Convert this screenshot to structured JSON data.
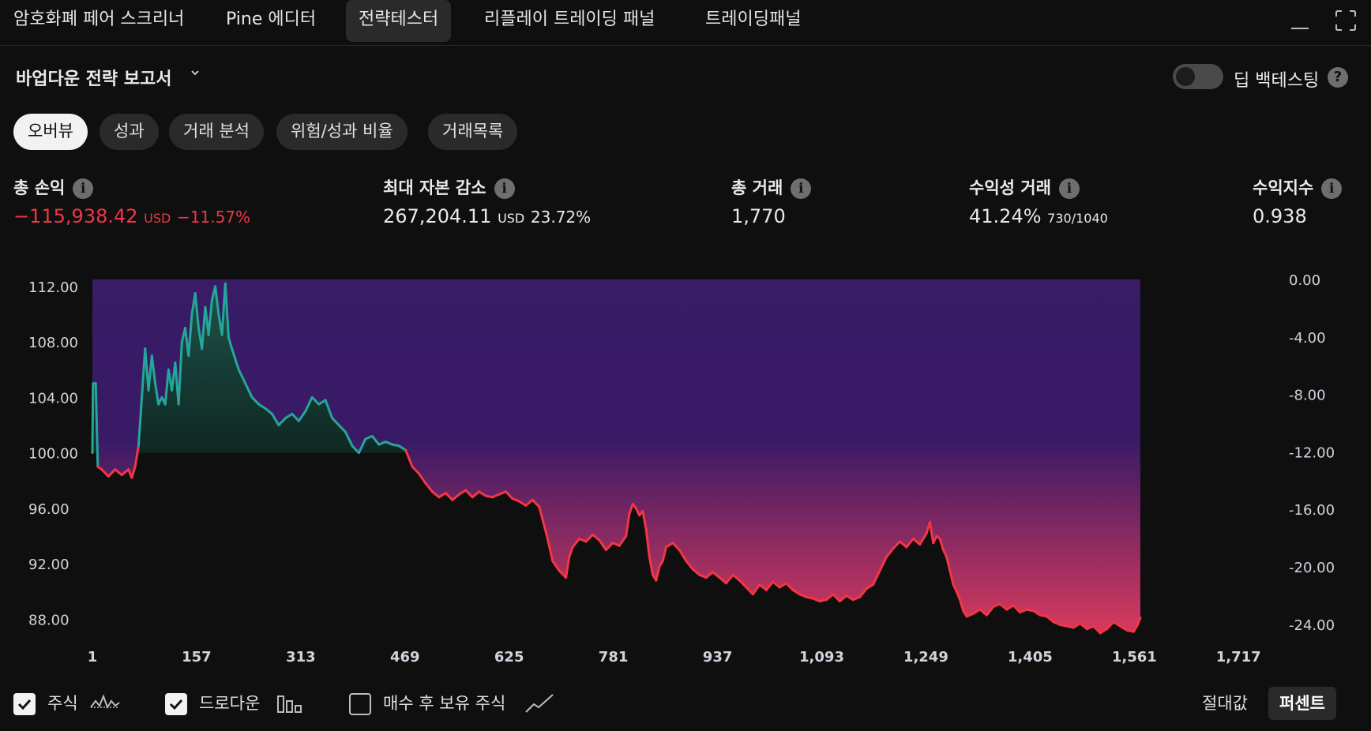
{
  "topbar": {
    "tabs": [
      "암호화폐 페어 스크리너",
      "Pine 에디터",
      "전략테스터",
      "리플레이 트레이딩 패널",
      "트레이딩패널"
    ],
    "active_tab": 2
  },
  "report": {
    "title": "바업다운 전략 보고서",
    "deep_backtest_label": "딥 백테스팅",
    "deep_backtest_on": false,
    "help_glyph": "?"
  },
  "subtabs": [
    "오버뷰",
    "성과",
    "거래 분석",
    "위험/성과 비율",
    "거래목록"
  ],
  "active_subtab": 0,
  "stats": [
    {
      "label": "총 손익",
      "value": "−115,938.42",
      "unit": "USD",
      "extra": "−11.57%",
      "negative": true
    },
    {
      "label": "최대 자본 감소",
      "value": "267,204.11",
      "unit": "USD",
      "extra": "23.72%",
      "negative": false
    },
    {
      "label": "총 거래",
      "value": "1,770",
      "unit": "",
      "extra": "",
      "negative": false
    },
    {
      "label": "수익성 거래",
      "value": "41.24%",
      "unit": "",
      "extra": "730/1040",
      "negative": false
    },
    {
      "label": "수익지수",
      "value": "0.938",
      "unit": "",
      "extra": "",
      "negative": false
    }
  ],
  "info_glyph": "i",
  "chart_data": {
    "type": "area",
    "x_ticks": [
      "1",
      "157",
      "313",
      "469",
      "625",
      "781",
      "937",
      "1,093",
      "1,249",
      "1,405",
      "1,561",
      "1,717"
    ],
    "y_left_ticks": [
      "112.00",
      "108.00",
      "104.00",
      "100.00",
      "96.00",
      "92.00",
      "88.00"
    ],
    "y_right_ticks": [
      "0.00",
      "-4.00",
      "-8.00",
      "-12.00",
      "-16.00",
      "-20.00",
      "-24.00"
    ],
    "y_left_range": [
      87,
      112.5
    ],
    "y_right_range": [
      -24,
      0
    ],
    "x_range": [
      1,
      1770
    ],
    "baseline": 100,
    "series": [
      {
        "name": "주식",
        "points": [
          [
            1,
            100
          ],
          [
            2,
            105
          ],
          [
            6,
            105
          ],
          [
            9,
            99
          ],
          [
            15,
            98.8
          ],
          [
            25,
            98.3
          ],
          [
            35,
            98.8
          ],
          [
            45,
            98.4
          ],
          [
            55,
            98.8
          ],
          [
            60,
            98.2
          ],
          [
            65,
            99
          ],
          [
            70,
            100.5
          ],
          [
            75,
            104
          ],
          [
            80,
            107.5
          ],
          [
            85,
            104.5
          ],
          [
            90,
            107
          ],
          [
            95,
            105
          ],
          [
            100,
            103.5
          ],
          [
            105,
            104
          ],
          [
            110,
            103.5
          ],
          [
            115,
            106
          ],
          [
            120,
            104.5
          ],
          [
            125,
            106.5
          ],
          [
            130,
            103.5
          ],
          [
            135,
            108
          ],
          [
            140,
            109
          ],
          [
            145,
            107
          ],
          [
            150,
            110
          ],
          [
            155,
            111.5
          ],
          [
            160,
            109
          ],
          [
            165,
            107.5
          ],
          [
            170,
            110.5
          ],
          [
            175,
            108.5
          ],
          [
            180,
            111
          ],
          [
            185,
            112
          ],
          [
            190,
            110
          ],
          [
            195,
            108.5
          ],
          [
            200,
            112.2
          ],
          [
            205,
            108.3
          ],
          [
            210,
            107.5
          ],
          [
            220,
            106
          ],
          [
            230,
            105
          ],
          [
            240,
            104
          ],
          [
            250,
            103.5
          ],
          [
            260,
            103.2
          ],
          [
            270,
            102.8
          ],
          [
            280,
            102
          ],
          [
            290,
            102.5
          ],
          [
            300,
            102.8
          ],
          [
            310,
            102.3
          ],
          [
            320,
            103
          ],
          [
            330,
            104
          ],
          [
            340,
            103.5
          ],
          [
            350,
            103.8
          ],
          [
            360,
            102.5
          ],
          [
            370,
            102
          ],
          [
            380,
            101.5
          ],
          [
            390,
            100.5
          ],
          [
            400,
            100
          ],
          [
            410,
            101
          ],
          [
            420,
            101.2
          ],
          [
            430,
            100.6
          ],
          [
            440,
            100.8
          ],
          [
            450,
            100.6
          ],
          [
            460,
            100.5
          ],
          [
            470,
            100.2
          ],
          [
            480,
            99
          ],
          [
            490,
            98.5
          ],
          [
            500,
            97.8
          ],
          [
            510,
            97.2
          ],
          [
            520,
            96.8
          ],
          [
            530,
            97.1
          ],
          [
            540,
            96.6
          ],
          [
            550,
            97
          ],
          [
            560,
            97.3
          ],
          [
            570,
            96.8
          ],
          [
            580,
            97.2
          ],
          [
            590,
            96.9
          ],
          [
            600,
            96.8
          ],
          [
            610,
            97
          ],
          [
            620,
            97.2
          ],
          [
            630,
            96.7
          ],
          [
            640,
            96.5
          ],
          [
            650,
            96.2
          ],
          [
            660,
            96.6
          ],
          [
            670,
            96.1
          ],
          [
            675,
            95.2
          ],
          [
            680,
            94.3
          ],
          [
            685,
            93.3
          ],
          [
            690,
            92.2
          ],
          [
            700,
            91.5
          ],
          [
            710,
            91
          ],
          [
            715,
            92.5
          ],
          [
            720,
            93.2
          ],
          [
            730,
            93.8
          ],
          [
            740,
            93.6
          ],
          [
            750,
            94.1
          ],
          [
            760,
            93.7
          ],
          [
            770,
            93
          ],
          [
            780,
            93.5
          ],
          [
            790,
            93.3
          ],
          [
            800,
            94
          ],
          [
            805,
            95.6
          ],
          [
            810,
            96.3
          ],
          [
            815,
            96
          ],
          [
            820,
            95.5
          ],
          [
            825,
            95.8
          ],
          [
            830,
            94.5
          ],
          [
            835,
            92.5
          ],
          [
            840,
            91.2
          ],
          [
            845,
            90.8
          ],
          [
            850,
            91.8
          ],
          [
            855,
            92.2
          ],
          [
            860,
            93.2
          ],
          [
            870,
            93.5
          ],
          [
            880,
            93
          ],
          [
            890,
            92.2
          ],
          [
            900,
            91.6
          ],
          [
            910,
            91.2
          ],
          [
            920,
            91
          ],
          [
            930,
            91.4
          ],
          [
            940,
            91
          ],
          [
            950,
            90.6
          ],
          [
            960,
            91.2
          ],
          [
            970,
            90.8
          ],
          [
            980,
            90.3
          ],
          [
            990,
            89.8
          ],
          [
            1000,
            90.5
          ],
          [
            1010,
            90.1
          ],
          [
            1020,
            90.7
          ],
          [
            1030,
            90.3
          ],
          [
            1040,
            90.6
          ],
          [
            1050,
            90.1
          ],
          [
            1060,
            89.8
          ],
          [
            1070,
            89.6
          ],
          [
            1080,
            89.5
          ],
          [
            1090,
            89.3
          ],
          [
            1100,
            89.4
          ],
          [
            1110,
            89.8
          ],
          [
            1120,
            89.3
          ],
          [
            1130,
            89.7
          ],
          [
            1140,
            89.4
          ],
          [
            1150,
            89.6
          ],
          [
            1160,
            90.2
          ],
          [
            1170,
            90.5
          ],
          [
            1180,
            91.5
          ],
          [
            1190,
            92.5
          ],
          [
            1200,
            93.1
          ],
          [
            1210,
            93.6
          ],
          [
            1220,
            93.2
          ],
          [
            1230,
            93.8
          ],
          [
            1240,
            93.4
          ],
          [
            1250,
            94.2
          ],
          [
            1255,
            95
          ],
          [
            1260,
            93.5
          ],
          [
            1265,
            94
          ],
          [
            1270,
            93.8
          ],
          [
            1275,
            93
          ],
          [
            1280,
            92.5
          ],
          [
            1285,
            91.5
          ],
          [
            1290,
            90.5
          ],
          [
            1295,
            90
          ],
          [
            1300,
            89.4
          ],
          [
            1305,
            88.6
          ],
          [
            1310,
            88.2
          ],
          [
            1320,
            88.4
          ],
          [
            1330,
            88.7
          ],
          [
            1340,
            88.3
          ],
          [
            1350,
            88.9
          ],
          [
            1360,
            89.1
          ],
          [
            1370,
            88.7
          ],
          [
            1380,
            89
          ],
          [
            1390,
            88.5
          ],
          [
            1400,
            88.7
          ],
          [
            1410,
            88.6
          ],
          [
            1420,
            88.3
          ],
          [
            1430,
            88.2
          ],
          [
            1440,
            87.8
          ],
          [
            1450,
            87.6
          ],
          [
            1460,
            87.5
          ],
          [
            1470,
            87.4
          ],
          [
            1480,
            87.7
          ],
          [
            1490,
            87.3
          ],
          [
            1500,
            87.5
          ],
          [
            1510,
            87
          ],
          [
            1520,
            87.3
          ],
          [
            1530,
            87.8
          ],
          [
            1540,
            87.5
          ],
          [
            1550,
            87.2
          ],
          [
            1560,
            87.1
          ],
          [
            1566,
            87.6
          ],
          [
            1570,
            88.1
          ]
        ]
      }
    ]
  },
  "footer": {
    "legend": [
      {
        "label": "주식",
        "checked": true,
        "icon": "equity-line-icon"
      },
      {
        "label": "드로다운",
        "checked": true,
        "icon": "drawdown-bars-icon"
      },
      {
        "label": "매수 후 보유 주식",
        "checked": false,
        "icon": "buyhold-line-icon"
      }
    ],
    "modes": [
      "절대값",
      "퍼센트"
    ],
    "active_mode": 1
  },
  "colors": {
    "profit": "#26a69a",
    "loss": "#f23645",
    "drawdown_top": "#3b1c6b",
    "drawdown_bottom": "#e23c61",
    "background": "#0f0f0f"
  }
}
